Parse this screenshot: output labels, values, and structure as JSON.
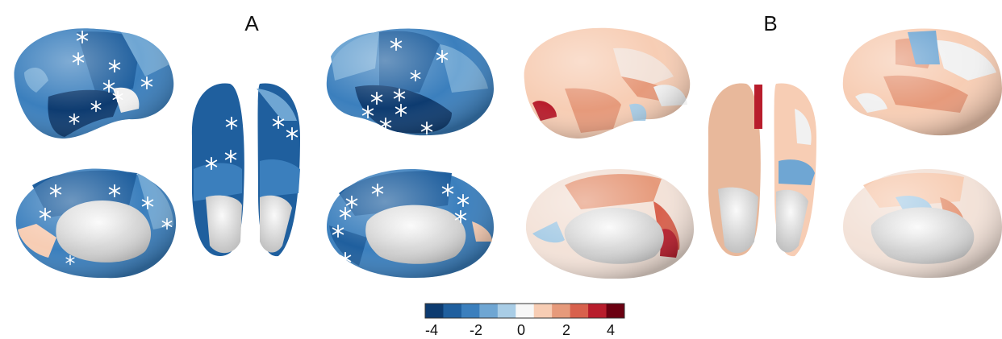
{
  "panels": [
    {
      "label": "A"
    },
    {
      "label": "B"
    }
  ],
  "colorbar": {
    "colors": [
      "#0d3b70",
      "#1f5f9e",
      "#3b7fbd",
      "#6fa6d3",
      "#a9cde6",
      "#f7f7f7",
      "#f7cdb4",
      "#e69a7b",
      "#d8614d",
      "#b81d2c",
      "#6b0011"
    ],
    "tick_labels": [
      "-4",
      "-2",
      "0",
      "2",
      "4"
    ]
  },
  "icons": {
    "significance_marker": "asterisk-icon"
  }
}
